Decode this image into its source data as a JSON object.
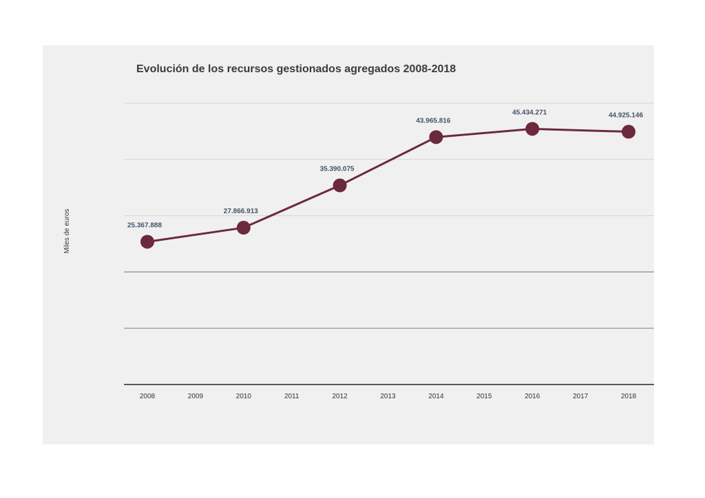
{
  "chart_data": {
    "type": "line",
    "title": "Evolución de los recursos gestionados agregados 2008-2018",
    "xlabel": "",
    "ylabel": "Miles de euros",
    "categories": [
      "2008",
      "2009",
      "2010",
      "2011",
      "2012",
      "2013",
      "2014",
      "2015",
      "2016",
      "2017",
      "2018"
    ],
    "series": [
      {
        "values": [
          25367888,
          null,
          27866913,
          null,
          35390075,
          null,
          43965816,
          null,
          45434271,
          null,
          44925146
        ],
        "labels": [
          "25.367.888",
          "",
          "27.866.913",
          "",
          "35.390.075",
          "",
          "43.965.816",
          "",
          "45.434.271",
          "",
          "44.925.146"
        ],
        "color": "#6b2a3c"
      }
    ],
    "ylim": [
      0,
      50000000
    ],
    "y_gridlines": [
      10000000,
      20000000,
      30000000,
      40000000,
      50000000
    ],
    "show_y_tick_labels": false,
    "grid": true,
    "colors": {
      "panel_background": "#f1f0f0",
      "line": "#6b2a3c",
      "marker": "#6b2a3c",
      "data_label": "#44546a",
      "gridline_light": "#d3d3d3",
      "gridline_dark": "#8c8c8c",
      "axis": "#595959"
    }
  }
}
